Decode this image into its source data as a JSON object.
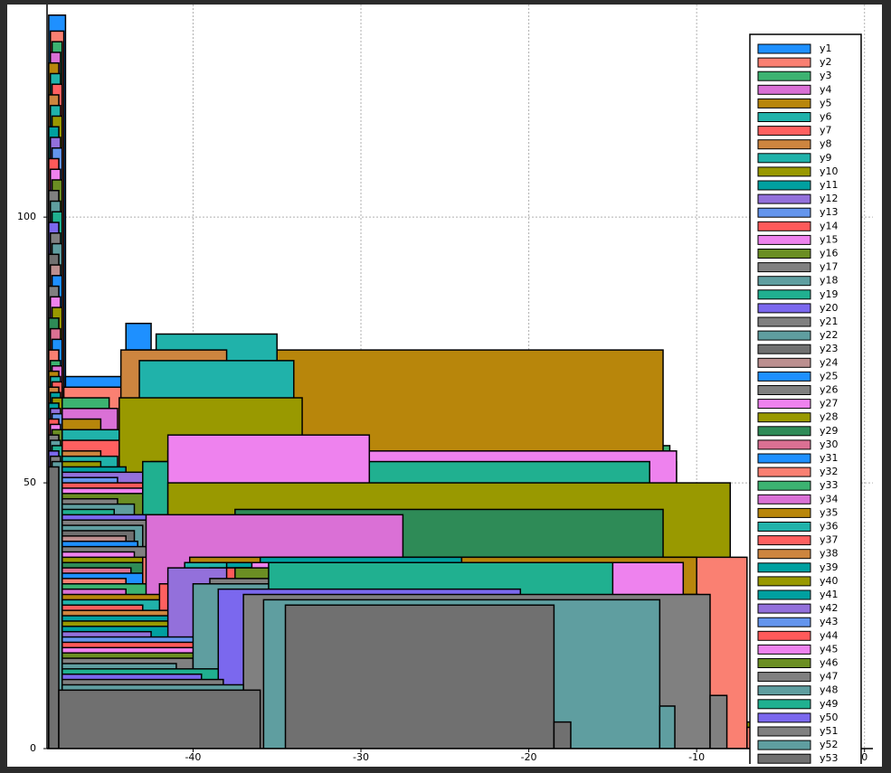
{
  "chart_data": {
    "type": "histogram",
    "xlim": [
      -48.7,
      0.5
    ],
    "ylim": [
      0,
      140
    ],
    "xticks": [
      -40,
      -30,
      -20,
      -10,
      0
    ],
    "yticks": [
      0,
      50,
      100
    ],
    "grid": true,
    "legend": "upper right",
    "series": [
      {
        "name": "y1",
        "color": "#1e90ff",
        "bins": [
          -48.6,
          -47.6,
          -44.0,
          -42.5,
          -36.8,
          -35.9
        ],
        "values": [
          138,
          70,
          80,
          0,
          54
        ]
      },
      {
        "name": "y2",
        "color": "#fa8072",
        "bins": [
          -48.5,
          -47.7,
          -41.0,
          -36.0,
          -34.5,
          -33.0
        ],
        "values": [
          135,
          68,
          0,
          28,
          36
        ]
      },
      {
        "name": "y3",
        "color": "#3cb371",
        "bins": [
          -48.4,
          -47.8,
          -45.0,
          -43.0,
          -12.4,
          -11.6
        ],
        "values": [
          133,
          66,
          0,
          46,
          57
        ]
      },
      {
        "name": "y4",
        "color": "#da70d6",
        "bins": [
          -48.5,
          -47.9,
          -44.5,
          -43.0,
          -11.9,
          -10.8
        ],
        "values": [
          131,
          64,
          0,
          55,
          36
        ]
      },
      {
        "name": "y5",
        "color": "#b8860b",
        "bins": [
          -48.6,
          -48.0,
          -45.5,
          -44.0,
          -12.0,
          -11.2
        ],
        "values": [
          129,
          62,
          0,
          75,
          54
        ]
      },
      {
        "name": "y6",
        "color": "#20b2aa",
        "bins": [
          -48.5,
          -47.9,
          -44.0,
          -42.2,
          -35.0,
          -33.5
        ],
        "values": [
          127,
          60,
          0,
          78,
          28
        ]
      },
      {
        "name": "y7",
        "color": "#ff6060",
        "bins": [
          -48.4,
          -47.8,
          -42.0,
          -40.5,
          -10.2,
          -9.0
        ],
        "values": [
          125,
          58,
          0,
          38,
          15
        ]
      },
      {
        "name": "y8",
        "color": "#cd853f",
        "bins": [
          -48.6,
          -48.0,
          -45.5,
          -44.3,
          -38.0,
          -36.8
        ],
        "values": [
          123,
          56,
          0,
          75,
          39
        ]
      },
      {
        "name": "y9",
        "color": "#20b2aa",
        "bins": [
          -48.5,
          -47.9,
          -44.5,
          -43.2,
          -34.0,
          -32.6
        ],
        "values": [
          121,
          55,
          0,
          73,
          27
        ]
      },
      {
        "name": "y10",
        "color": "#999900",
        "bins": [
          -48.4,
          -47.8,
          -45.5,
          -44.4,
          -33.5,
          -32.3
        ],
        "values": [
          119,
          54,
          0,
          66,
          26
        ]
      },
      {
        "name": "y11",
        "color": "#00a0a0",
        "bins": [
          -48.6,
          -48.0,
          -44.0,
          -42.5,
          -33.0,
          -31.6
        ],
        "values": [
          117,
          53,
          0,
          54,
          36
        ]
      },
      {
        "name": "y12",
        "color": "#9370db",
        "bins": [
          -48.5,
          -47.9,
          -42.0,
          -40.0,
          -9.9,
          -8.9
        ],
        "values": [
          115,
          52,
          0,
          39,
          31
        ]
      },
      {
        "name": "y13",
        "color": "#6495ed",
        "bins": [
          -48.4,
          -47.8,
          -44.5,
          -43.2,
          -11.0,
          -9.8
        ],
        "values": [
          113,
          51,
          0,
          44,
          44
        ]
      },
      {
        "name": "y14",
        "color": "#ff5a5a",
        "bins": [
          -48.6,
          -48.0,
          -42.0,
          -40.5,
          -11.5,
          -10.6
        ],
        "values": [
          111,
          50,
          0,
          36,
          34
        ]
      },
      {
        "name": "y15",
        "color": "#ee82ee",
        "bins": [
          -48.5,
          -47.9,
          -43.0,
          -41.5,
          -11.2,
          -10.0
        ],
        "values": [
          109,
          49,
          0,
          56,
          26
        ]
      },
      {
        "name": "y16",
        "color": "#6b8e23",
        "bins": [
          -48.4,
          -47.8,
          -40.5,
          -39.5,
          -30.0,
          -29.0
        ],
        "values": [
          107,
          48,
          0,
          37,
          9
        ]
      },
      {
        "name": "y17",
        "color": "#808080",
        "bins": [
          -48.6,
          -48.0,
          -44.5,
          -43.0,
          -9.0,
          -8.0
        ],
        "values": [
          105,
          47,
          0,
          44,
          10
        ]
      },
      {
        "name": "y18",
        "color": "#5f9ea0",
        "bins": [
          -48.5,
          -47.9,
          -43.5,
          -42.3,
          -25.0,
          -24.0
        ],
        "values": [
          103,
          46,
          0,
          39,
          8
        ]
      },
      {
        "name": "y19",
        "color": "#20b090",
        "bins": [
          -48.4,
          -47.8,
          -44.7,
          -43.0,
          -12.8,
          -12.0
        ],
        "values": [
          101,
          45,
          0,
          54,
          30
        ]
      },
      {
        "name": "y20",
        "color": "#7b68ee",
        "bins": [
          -48.6,
          -48.0,
          -41.0,
          -39.5,
          -20.0,
          -19.0
        ],
        "values": [
          99,
          44,
          0,
          36,
          6
        ]
      },
      {
        "name": "y21",
        "color": "#808080",
        "bins": [
          -48.5,
          -47.9,
          -42.0,
          -40.8,
          -27.0,
          -26.0
        ],
        "values": [
          97,
          43,
          0,
          36,
          7
        ]
      },
      {
        "name": "y22",
        "color": "#5f9ea0",
        "bins": [
          -48.4,
          -47.8,
          -43.0,
          -41.8,
          -33.5,
          -32.5
        ],
        "values": [
          95,
          42,
          0,
          35,
          24
        ]
      },
      {
        "name": "y23",
        "color": "#707070",
        "bins": [
          -48.6,
          -48.0,
          -43.5,
          -42.0,
          -16.0,
          -15.0
        ],
        "values": [
          93,
          41,
          0,
          36,
          6
        ]
      },
      {
        "name": "y24",
        "color": "#bc8f8f",
        "bins": [
          -48.5,
          -47.9,
          -44.0,
          -42.8,
          -33.0,
          -31.7
        ],
        "values": [
          91,
          40,
          0,
          38,
          11
        ]
      },
      {
        "name": "y25",
        "color": "#1e90ff",
        "bins": [
          -48.4,
          -47.8,
          -43.3,
          -42.0,
          -31.5,
          -30.0
        ],
        "values": [
          89,
          39,
          0,
          36,
          12
        ]
      },
      {
        "name": "y26",
        "color": "#808080",
        "bins": [
          -48.6,
          -48.0,
          -41.5,
          -40.0,
          -14.0,
          -13.0
        ],
        "values": [
          87,
          38,
          0,
          36,
          5
        ]
      },
      {
        "name": "y27",
        "color": "#ee82ee",
        "bins": [
          -48.5,
          -47.9,
          -43.5,
          -41.5,
          -29.5,
          -28.0
        ],
        "values": [
          85,
          37,
          0,
          59,
          10
        ]
      },
      {
        "name": "y28",
        "color": "#999900",
        "bins": [
          -48.4,
          -47.8,
          -43.0,
          -41.5,
          -8.0,
          -6.8
        ],
        "values": [
          83,
          36,
          0,
          50,
          5
        ]
      },
      {
        "name": "y29",
        "color": "#2e8b57",
        "bins": [
          -48.6,
          -48.0,
          -39.0,
          -37.5,
          -12.0,
          -11.0
        ],
        "values": [
          81,
          35,
          0,
          45,
          5
        ]
      },
      {
        "name": "y30",
        "color": "#db7093",
        "bins": [
          -48.5,
          -47.9,
          -43.7,
          -42.5,
          -33.5,
          -32.2
        ],
        "values": [
          79,
          34,
          0,
          35,
          11
        ]
      },
      {
        "name": "y31",
        "color": "#1e90ff",
        "bins": [
          -48.4,
          -47.8,
          -43.0,
          -42.0,
          -28.0,
          -25.5
        ],
        "values": [
          77,
          33,
          0,
          36,
          6
        ]
      },
      {
        "name": "y32",
        "color": "#fa8072",
        "bins": [
          -48.6,
          -48.0,
          -44.0,
          -43.0,
          -7.0,
          -6.0
        ],
        "values": [
          75,
          32,
          0,
          36,
          4
        ]
      },
      {
        "name": "y33",
        "color": "#3cb371",
        "bins": [
          -48.5,
          -47.9,
          -42.0,
          -41.0,
          -18.0,
          -17.0
        ],
        "values": [
          73,
          31,
          0,
          35,
          6
        ]
      },
      {
        "name": "y34",
        "color": "#da70d6",
        "bins": [
          -48.4,
          -47.8,
          -44.0,
          -42.8,
          -27.5,
          -26.0
        ],
        "values": [
          72,
          30,
          0,
          44,
          7
        ]
      },
      {
        "name": "y35",
        "color": "#b8860b",
        "bins": [
          -48.6,
          -48.0,
          -41.5,
          -40.2,
          -10.0,
          -9.0
        ],
        "values": [
          71,
          29,
          0,
          36,
          6
        ]
      },
      {
        "name": "y36",
        "color": "#20b2aa",
        "bins": [
          -48.5,
          -47.9,
          -41.8,
          -40.5,
          -23.0,
          -22.0
        ],
        "values": [
          70,
          28,
          0,
          35,
          7
        ]
      },
      {
        "name": "y37",
        "color": "#ff6060",
        "bins": [
          -48.4,
          -47.8,
          -43.0,
          -42.0,
          -34.0,
          -33.0
        ],
        "values": [
          69,
          27,
          0,
          31,
          14
        ]
      },
      {
        "name": "y38",
        "color": "#cd853f",
        "bins": [
          -48.6,
          -48.0,
          -38.5,
          -37.0,
          -22.0,
          -21.0
        ],
        "values": [
          68,
          26,
          0,
          35,
          5
        ]
      },
      {
        "name": "y39",
        "color": "#00a0a0",
        "bins": [
          -48.5,
          -47.9,
          -39.5,
          -38.0,
          -16.5,
          -15.5
        ],
        "values": [
          67,
          25,
          0,
          35,
          6
        ]
      },
      {
        "name": "y40",
        "color": "#999900",
        "bins": [
          -48.4,
          -47.8,
          -40.5,
          -39.0,
          -19.0,
          -18.0
        ],
        "values": [
          66,
          24,
          0,
          34,
          5
        ]
      },
      {
        "name": "y41",
        "color": "#00a0a0",
        "bins": [
          -48.6,
          -48.0,
          -37.5,
          -36.0,
          -24.0,
          -23.0
        ],
        "values": [
          65,
          23,
          0,
          36,
          6
        ]
      },
      {
        "name": "y42",
        "color": "#9370db",
        "bins": [
          -48.5,
          -47.9,
          -42.5,
          -41.5,
          -13.0,
          -12.0
        ],
        "values": [
          64,
          22,
          0,
          34,
          5
        ]
      },
      {
        "name": "y43",
        "color": "#6495ed",
        "bins": [
          -48.4,
          -47.8,
          -38.0,
          -36.5,
          -36.0,
          -35.0
        ],
        "values": [
          63,
          21,
          0,
          34,
          24
        ]
      },
      {
        "name": "y44",
        "color": "#ff5a5a",
        "bins": [
          -48.6,
          -48.0,
          -39.0,
          -38.0,
          -34.0,
          -33.0
        ],
        "values": [
          62,
          20,
          0,
          34,
          10
        ]
      },
      {
        "name": "y45",
        "color": "#ee82ee",
        "bins": [
          -48.5,
          -47.9,
          -38.0,
          -36.5,
          -10.8,
          -9.9
        ],
        "values": [
          61,
          19,
          0,
          35,
          29
        ]
      },
      {
        "name": "y46",
        "color": "#6b8e23",
        "bins": [
          -48.4,
          -47.8,
          -38.5,
          -37.5,
          -21.0,
          -20.0
        ],
        "values": [
          60,
          18,
          0,
          34,
          5
        ]
      },
      {
        "name": "y47",
        "color": "#808080",
        "bins": [
          -48.6,
          -48.0,
          -40.0,
          -39.0,
          -17.5,
          -16.5
        ],
        "values": [
          59,
          17,
          0,
          32,
          5
        ]
      },
      {
        "name": "y48",
        "color": "#5f9ea0",
        "bins": [
          -48.5,
          -47.9,
          -41.0,
          -40.0,
          -26.0,
          -25.0
        ],
        "values": [
          58,
          16,
          0,
          31,
          6
        ]
      },
      {
        "name": "y49",
        "color": "#20b090",
        "bins": [
          -48.4,
          -47.8,
          -36.5,
          -35.5,
          -15.0,
          -14.0
        ],
        "values": [
          57,
          15,
          0,
          35,
          5
        ]
      },
      {
        "name": "y50",
        "color": "#7b68ee",
        "bins": [
          -48.6,
          -48.0,
          -39.5,
          -38.5,
          -20.5,
          -19.5
        ],
        "values": [
          56,
          14,
          0,
          30,
          4
        ]
      },
      {
        "name": "y51",
        "color": "#808080",
        "bins": [
          -48.5,
          -47.9,
          -38.2,
          -37.0,
          -9.2,
          -8.2
        ],
        "values": [
          55,
          13,
          0,
          29,
          10
        ]
      },
      {
        "name": "y52",
        "color": "#5f9ea0",
        "bins": [
          -48.4,
          -47.8,
          -37.0,
          -35.8,
          -12.2,
          -11.3
        ],
        "values": [
          54,
          12,
          0,
          28,
          8
        ]
      },
      {
        "name": "y53",
        "color": "#707070",
        "bins": [
          -48.6,
          -48.0,
          -36.0,
          -34.5,
          -18.5,
          -17.5
        ],
        "values": [
          53,
          11,
          0,
          27,
          5
        ]
      }
    ]
  }
}
